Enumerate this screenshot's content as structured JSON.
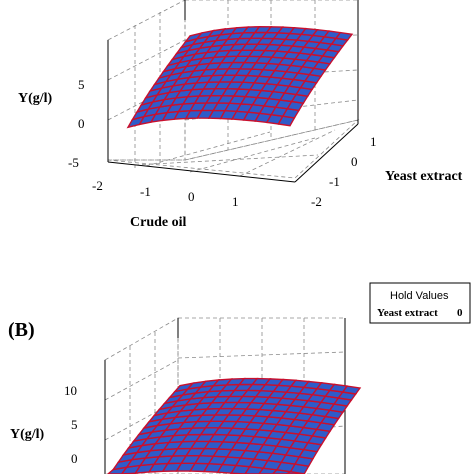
{
  "chart_data": [
    {
      "type": "surface",
      "panel_label": "",
      "zlabel": "Y(g/l)",
      "xlabel": "Crude oil",
      "ylabel": "Yeast extract",
      "x_ticks": [
        "-2",
        "-1",
        "0",
        "1"
      ],
      "y_ticks": [
        "1",
        "0",
        "-1",
        "-2"
      ],
      "z_ticks": [
        "5",
        "0",
        "-5"
      ],
      "xlim": [
        -2,
        2
      ],
      "ylim": [
        -2,
        2
      ],
      "zlim": [
        -5,
        10
      ],
      "surface_range": [
        2.4,
        9.6
      ],
      "grid": true,
      "colors": {
        "surface": "#2f5bc9",
        "mesh": "#c8102e"
      }
    },
    {
      "type": "surface",
      "panel_label": "(B)",
      "zlabel": "Y(g/l)",
      "z_ticks": [
        "10",
        "5",
        "0"
      ],
      "zlim": [
        0,
        12
      ],
      "surface_range": [
        2.8,
        10.0
      ],
      "grid": true,
      "colors": {
        "surface": "#2f5bc9",
        "mesh": "#c8102e"
      },
      "hold_values": {
        "title": "Hold Values",
        "label": "Yeast extract",
        "value": "0"
      }
    }
  ]
}
